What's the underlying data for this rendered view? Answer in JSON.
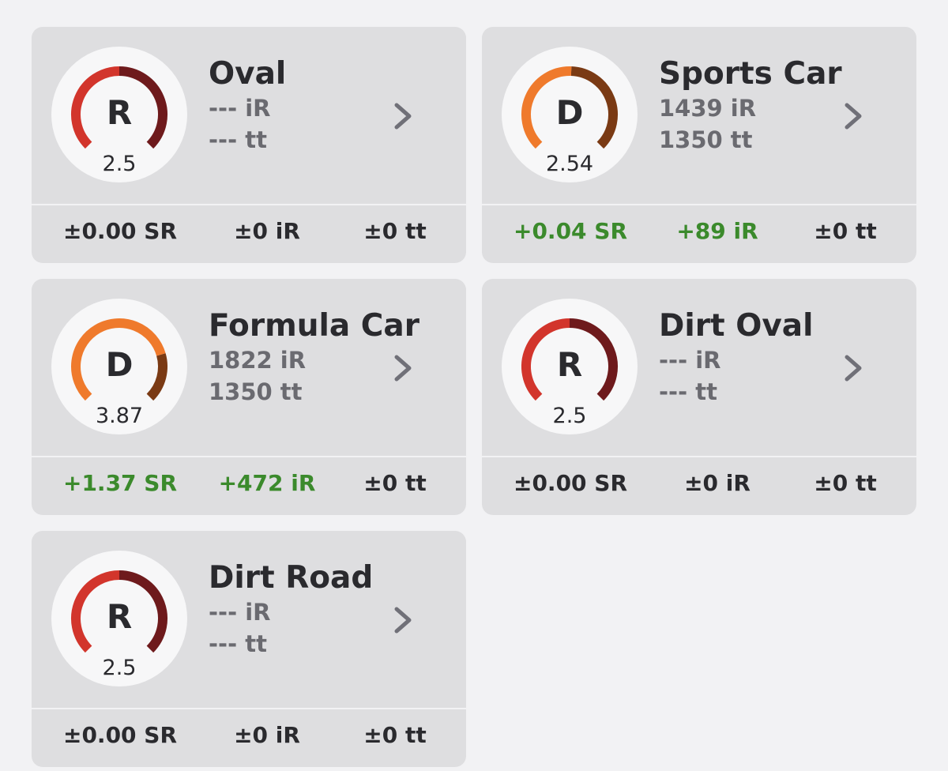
{
  "cards": [
    {
      "title": "Oval",
      "license": "R",
      "sr": 2.5,
      "ir": "--- iR",
      "tt": "--- tt",
      "color": "#d2352c",
      "dark_color": "#6e1a1c",
      "stats": [
        {
          "text": "±0.00 SR",
          "color": "#2a2a2e"
        },
        {
          "text": "±0 iR",
          "color": "#2a2a2e"
        },
        {
          "text": "±0 tt",
          "color": "#2a2a2e"
        }
      ]
    },
    {
      "title": "Sports Car",
      "license": "D",
      "sr": 2.54,
      "ir": "1439 iR",
      "tt": "1350 tt",
      "color": "#ef7a2c",
      "dark_color": "#7a3a14",
      "stats": [
        {
          "text": "+0.04 SR",
          "color": "#3b8a2c"
        },
        {
          "text": "+89 iR",
          "color": "#3b8a2c"
        },
        {
          "text": "±0 tt",
          "color": "#2a2a2e"
        }
      ]
    },
    {
      "title": "Formula Car",
      "license": "D",
      "sr": 3.87,
      "ir": "1822 iR",
      "tt": "1350 tt",
      "color": "#ef7a2c",
      "dark_color": "#7a3a14",
      "stats": [
        {
          "text": "+1.37 SR",
          "color": "#3b8a2c"
        },
        {
          "text": "+472 iR",
          "color": "#3b8a2c"
        },
        {
          "text": "±0 tt",
          "color": "#2a2a2e"
        }
      ]
    },
    {
      "title": "Dirt Oval",
      "license": "R",
      "sr": 2.5,
      "ir": "--- iR",
      "tt": "--- tt",
      "color": "#d2352c",
      "dark_color": "#6e1a1c",
      "stats": [
        {
          "text": "±0.00 SR",
          "color": "#2a2a2e"
        },
        {
          "text": "±0 iR",
          "color": "#2a2a2e"
        },
        {
          "text": "±0 tt",
          "color": "#2a2a2e"
        }
      ]
    },
    {
      "title": "Dirt Road",
      "license": "R",
      "sr": 2.5,
      "ir": "--- iR",
      "tt": "--- tt",
      "color": "#d2352c",
      "dark_color": "#6e1a1c",
      "stats": [
        {
          "text": "±0.00 SR",
          "color": "#2a2a2e"
        },
        {
          "text": "±0 iR",
          "color": "#2a2a2e"
        },
        {
          "text": "±0 tt",
          "color": "#2a2a2e"
        }
      ]
    }
  ]
}
